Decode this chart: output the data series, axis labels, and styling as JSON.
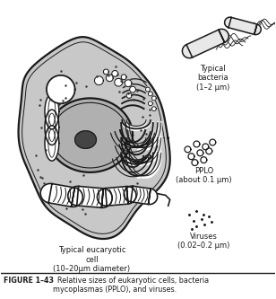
{
  "cell_label": "Typical eucaryotic\ncell\n(10–20μm diameter)",
  "bacteria_label": "Typical\nbacteria\n(1–2 μm)",
  "pplo_label": "PPLO\n(about 0.1 μm)",
  "viruses_label": "Viruses\n(0.02–0.2 μm)",
  "bg_color": "#ffffff",
  "drawing_color": "#1a1a1a",
  "cell_fill": "#c8c8c8",
  "nucleus_fill": "#b0b0b0",
  "nucleolus_fill": "#444444",
  "white_fill": "#ffffff",
  "caption_bold": "FIGURE 1–43",
  "caption_text": "  Relative sizes of eukaryotic cells, bacteria\nmycoplasmas (PPLO), and viruses."
}
